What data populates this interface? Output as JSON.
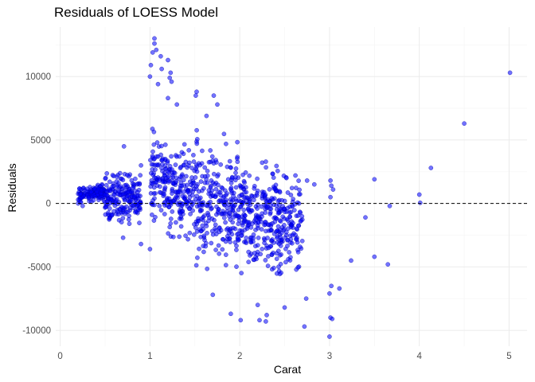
{
  "chart_data": {
    "type": "scatter",
    "title": "Residuals of LOESS Model",
    "xlabel": "Carat",
    "ylabel": "Residuals",
    "xlim": [
      -0.05,
      5.2
    ],
    "ylim": [
      -11250,
      13900
    ],
    "x_ticks": [
      0,
      1,
      2,
      3,
      4,
      5
    ],
    "y_ticks": [
      -10000,
      -5000,
      0,
      5000,
      10000
    ],
    "grid": true,
    "reference_line": {
      "y": 0,
      "style": "dashed",
      "color": "#000000"
    },
    "point_color": "#0000ff",
    "point_opacity": 0.55,
    "bands": [
      {
        "x": [
          0.2,
          0.5
        ],
        "ymin": 0,
        "ymax": 1600
      },
      {
        "x": [
          0.5,
          0.9
        ],
        "ymin": -2000,
        "ymax": 2800
      },
      {
        "x": [
          1.0,
          1.2
        ],
        "ymin": -2800,
        "ymax": 6500
      },
      {
        "x": [
          1.2,
          1.5
        ],
        "ymin": -4200,
        "ymax": 5800
      },
      {
        "x": [
          1.5,
          1.55
        ],
        "ymin": -6800,
        "ymax": 8800
      },
      {
        "x": [
          1.55,
          2.0
        ],
        "ymin": -6000,
        "ymax": 6000
      },
      {
        "x": [
          2.0,
          2.05
        ],
        "ymin": -6500,
        "ymax": 5300
      },
      {
        "x": [
          2.05,
          2.7
        ],
        "ymin": -7000,
        "ymax": 4000
      }
    ],
    "points": [
      {
        "x": 1.05,
        "y": 13000
      },
      {
        "x": 1.05,
        "y": 12600
      },
      {
        "x": 1.07,
        "y": 12100
      },
      {
        "x": 1.03,
        "y": 11900
      },
      {
        "x": 1.12,
        "y": 11600
      },
      {
        "x": 1.2,
        "y": 11300
      },
      {
        "x": 1.01,
        "y": 10900
      },
      {
        "x": 1.13,
        "y": 10600
      },
      {
        "x": 1.23,
        "y": 10300
      },
      {
        "x": 1.0,
        "y": 10000
      },
      {
        "x": 1.22,
        "y": 9900
      },
      {
        "x": 1.09,
        "y": 9400
      },
      {
        "x": 1.2,
        "y": 8300
      },
      {
        "x": 1.24,
        "y": 9600
      },
      {
        "x": 1.52,
        "y": 8800
      },
      {
        "x": 1.51,
        "y": 8500
      },
      {
        "x": 1.71,
        "y": 8500
      },
      {
        "x": 1.75,
        "y": 7800
      },
      {
        "x": 1.3,
        "y": 7800
      },
      {
        "x": 1.63,
        "y": 6900
      },
      {
        "x": 2.52,
        "y": 2000
      },
      {
        "x": 2.62,
        "y": 2200
      },
      {
        "x": 2.75,
        "y": 1800
      },
      {
        "x": 2.83,
        "y": 1500
      },
      {
        "x": 3.01,
        "y": 1800
      },
      {
        "x": 3.02,
        "y": 1400
      },
      {
        "x": 3.04,
        "y": 1100
      },
      {
        "x": 3.01,
        "y": 500
      },
      {
        "x": 3.5,
        "y": 1900
      },
      {
        "x": 4.13,
        "y": 2800
      },
      {
        "x": 4.5,
        "y": 6300
      },
      {
        "x": 5.01,
        "y": 10300
      },
      {
        "x": 4.0,
        "y": 700
      },
      {
        "x": 4.01,
        "y": 50
      },
      {
        "x": 3.67,
        "y": -200
      },
      {
        "x": 3.4,
        "y": -1100
      },
      {
        "x": 3.24,
        "y": -4500
      },
      {
        "x": 3.5,
        "y": -4200
      },
      {
        "x": 3.65,
        "y": -4800
      },
      {
        "x": 3.11,
        "y": -6700
      },
      {
        "x": 3.02,
        "y": -6500
      },
      {
        "x": 3.0,
        "y": -7100
      },
      {
        "x": 3.01,
        "y": -9000
      },
      {
        "x": 3.0,
        "y": -10500
      },
      {
        "x": 3.03,
        "y": -9100
      },
      {
        "x": 2.74,
        "y": -7500
      },
      {
        "x": 2.72,
        "y": -9700
      },
      {
        "x": 2.5,
        "y": -8200
      },
      {
        "x": 2.3,
        "y": -8800
      },
      {
        "x": 2.29,
        "y": -9300
      },
      {
        "x": 2.22,
        "y": -9200
      },
      {
        "x": 2.2,
        "y": -8000
      },
      {
        "x": 2.01,
        "y": -9200
      },
      {
        "x": 1.9,
        "y": -8700
      },
      {
        "x": 1.7,
        "y": -7200
      },
      {
        "x": 0.71,
        "y": 4500
      },
      {
        "x": 0.9,
        "y": 3000
      },
      {
        "x": 0.7,
        "y": -2700
      },
      {
        "x": 0.9,
        "y": -3200
      },
      {
        "x": 1.0,
        "y": -3600
      },
      {
        "x": 0.2,
        "y": 0
      },
      {
        "x": 0.23,
        "y": 100
      },
      {
        "x": 0.25,
        "y": -200
      }
    ]
  }
}
